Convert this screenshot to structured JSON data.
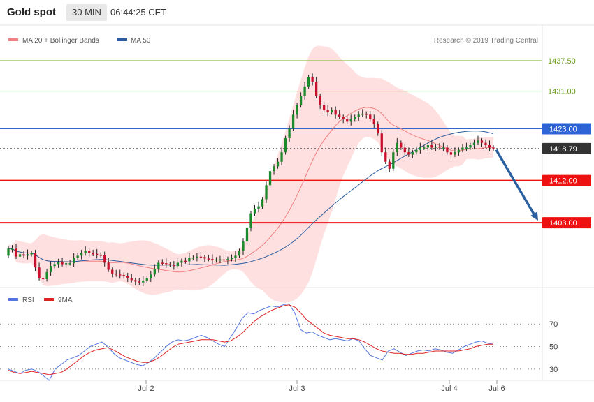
{
  "header": {
    "title": "Gold spot",
    "timeframe": "30 MIN",
    "time": "06:44:25 CET"
  },
  "price_panel": {
    "legend": [
      {
        "label": "MA 20 + Bollinger Bands",
        "color": "#f08080"
      },
      {
        "label": "MA 50",
        "color": "#2b5c9e"
      }
    ],
    "credit": "Research © 2019 Trading Central"
  },
  "rsi_panel": {
    "legend": [
      {
        "label": "RSI",
        "color": "#5577dd"
      },
      {
        "label": "9MA",
        "color": "#dd2222"
      }
    ]
  },
  "x_labels": [
    "Jul 2",
    "Jul 3",
    "Jul 4",
    "Jul 6"
  ],
  "chart_data": [
    {
      "type": "candlestick",
      "ylim": [
        1391,
        1440
      ],
      "levels": [
        {
          "value": 1437.5,
          "label": "1437.50",
          "color": "#8bc34a",
          "kind": "resistance-thin"
        },
        {
          "value": 1431.0,
          "label": "1431.00",
          "color": "#8bc34a",
          "kind": "resistance-thin"
        },
        {
          "value": 1423.0,
          "label": "1423.00",
          "color": "#3366cc",
          "kind": "pivot"
        },
        {
          "value": 1418.79,
          "label": "1418.79",
          "color": "#333333",
          "kind": "last-price"
        },
        {
          "value": 1412.0,
          "label": "1412.00",
          "color": "#ee1111",
          "kind": "support"
        },
        {
          "value": 1403.0,
          "label": "1403.00",
          "color": "#ee1111",
          "kind": "support"
        }
      ],
      "forecast_arrow": {
        "from": 1418.5,
        "to": 1403.0,
        "color": "#2a5fa0"
      },
      "closes": [
        1397.5,
        1397.5,
        1395.8,
        1396.3,
        1396.0,
        1396.3,
        1396.5,
        1393.5,
        1391.2,
        1391.0,
        1392.5,
        1393.8,
        1394.2,
        1394.6,
        1394.2,
        1394.4,
        1394.4,
        1395.5,
        1396.0,
        1396.5,
        1397.0,
        1396.5,
        1396.4,
        1396.2,
        1396.1,
        1394.5,
        1393.0,
        1392.2,
        1392.0,
        1391.9,
        1391.6,
        1391.2,
        1390.8,
        1390.5,
        1390.3,
        1390.7,
        1391.2,
        1392.0,
        1393.2,
        1394.5,
        1394.4,
        1394.2,
        1394.1,
        1393.8,
        1394.5,
        1394.9,
        1394.8,
        1395.5,
        1395.6,
        1395.8,
        1395.7,
        1395.4,
        1395.3,
        1395.0,
        1395.2,
        1395.2,
        1395.0,
        1395.3,
        1395.5,
        1396.0,
        1397.0,
        1399.0,
        1402.0,
        1405.0,
        1406.0,
        1406.5,
        1408.0,
        1411.0,
        1414.0,
        1415.0,
        1416.0,
        1418.0,
        1421.0,
        1423.0,
        1426.0,
        1428.0,
        1430.0,
        1432.0,
        1434.0,
        1433.0,
        1430.0,
        1428.0,
        1427.0,
        1426.5,
        1427.0,
        1426.0,
        1425.5,
        1425.0,
        1424.5,
        1425.0,
        1425.5,
        1426.0,
        1426.2,
        1426.0,
        1425.0,
        1424.0,
        1422.0,
        1418.0,
        1416.0,
        1414.5,
        1418.0,
        1420.0,
        1419.0,
        1418.0,
        1417.5,
        1418.0,
        1418.5,
        1419.0,
        1419.0,
        1419.5,
        1419.0,
        1419.2,
        1419.0,
        1419.0,
        1418.0,
        1417.5,
        1418.0,
        1418.5,
        1419.0,
        1419.0,
        1419.5,
        1420.0,
        1420.5,
        1420.0,
        1419.5,
        1419.0,
        1418.8
      ],
      "opens": [
        1396.0,
        1397.5,
        1397.5,
        1395.8,
        1396.3,
        1396.0,
        1396.3,
        1396.5,
        1393.5,
        1391.2,
        1391.0,
        1392.5,
        1393.8,
        1394.2,
        1394.6,
        1394.2,
        1394.4,
        1394.4,
        1395.5,
        1396.0,
        1396.5,
        1397.0,
        1396.5,
        1396.4,
        1396.2,
        1396.1,
        1394.5,
        1393.0,
        1392.2,
        1392.0,
        1391.9,
        1391.6,
        1391.2,
        1390.8,
        1390.5,
        1390.3,
        1390.7,
        1391.2,
        1392.0,
        1393.2,
        1394.5,
        1394.4,
        1394.2,
        1394.1,
        1393.8,
        1394.5,
        1394.9,
        1394.8,
        1395.5,
        1395.6,
        1395.8,
        1395.7,
        1395.4,
        1395.3,
        1395.0,
        1395.2,
        1395.2,
        1395.0,
        1395.3,
        1395.5,
        1396.0,
        1397.0,
        1399.0,
        1402.0,
        1405.0,
        1406.0,
        1406.5,
        1408.0,
        1411.0,
        1414.0,
        1415.0,
        1416.0,
        1418.0,
        1421.0,
        1423.0,
        1426.0,
        1428.0,
        1430.0,
        1432.0,
        1434.0,
        1433.0,
        1430.0,
        1428.0,
        1427.0,
        1426.5,
        1427.0,
        1426.0,
        1425.5,
        1425.0,
        1424.5,
        1425.0,
        1425.5,
        1426.0,
        1426.2,
        1426.0,
        1425.0,
        1424.0,
        1422.0,
        1418.0,
        1416.0,
        1414.5,
        1418.0,
        1420.0,
        1419.0,
        1418.0,
        1417.5,
        1418.0,
        1418.5,
        1419.0,
        1419.0,
        1419.5,
        1419.0,
        1419.2,
        1419.0,
        1419.0,
        1418.0,
        1417.5,
        1418.0,
        1418.5,
        1419.0,
        1419.0,
        1419.5,
        1420.0,
        1420.5,
        1420.0,
        1419.5,
        1419.0
      ]
    },
    {
      "type": "line",
      "series": [
        {
          "name": "RSI",
          "color": "#5577dd"
        },
        {
          "name": "9MA",
          "color": "#dd2222"
        }
      ],
      "ylim": [
        20,
        85
      ],
      "yticks": [
        30,
        50,
        70
      ],
      "rsi": [
        30,
        28,
        26,
        29,
        30,
        28,
        24,
        20,
        30,
        34,
        38,
        40,
        42,
        46,
        50,
        52,
        54,
        50,
        44,
        40,
        38,
        36,
        34,
        33,
        36,
        40,
        45,
        50,
        54,
        56,
        55,
        56,
        58,
        60,
        58,
        55,
        52,
        50,
        58,
        66,
        75,
        80,
        79,
        82,
        84,
        86,
        85,
        87,
        88,
        80,
        65,
        62,
        63,
        60,
        58,
        56,
        57,
        56,
        55,
        57,
        55,
        48,
        42,
        40,
        38,
        46,
        48,
        45,
        42,
        44,
        46,
        47,
        46,
        48,
        47,
        45,
        44,
        47,
        50,
        52,
        54,
        55,
        53,
        52
      ],
      "ma9": [
        29,
        27,
        26,
        27,
        28,
        27,
        26,
        25,
        26,
        27,
        30,
        34,
        38,
        42,
        45,
        47,
        48,
        49,
        47,
        44,
        41,
        39,
        37,
        36,
        36,
        38,
        41,
        45,
        49,
        52,
        53,
        54,
        55,
        56,
        56,
        56,
        55,
        54,
        55,
        58,
        62,
        67,
        72,
        76,
        79,
        82,
        84,
        86,
        87,
        85,
        80,
        74,
        70,
        66,
        62,
        60,
        59,
        58,
        57,
        57,
        56,
        54,
        51,
        48,
        46,
        45,
        44,
        44,
        43,
        43,
        44,
        44,
        45,
        46,
        46,
        46,
        46,
        46,
        47,
        48,
        50,
        51,
        52,
        52
      ]
    }
  ]
}
